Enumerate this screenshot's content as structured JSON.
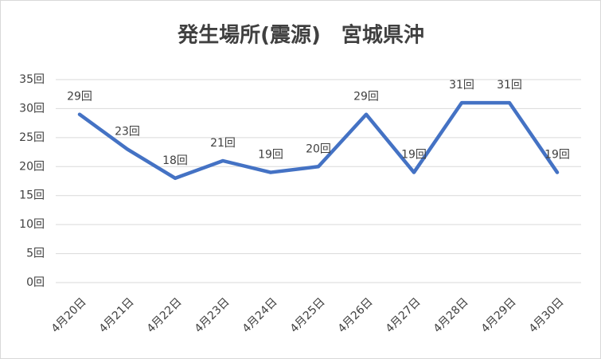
{
  "chart_data": {
    "type": "line",
    "title": "発生場所(震源)　宮城県沖",
    "categories": [
      "4月20日",
      "4月21日",
      "4月22日",
      "4月23日",
      "4月24日",
      "4月25日",
      "4月26日",
      "4月27日",
      "4月28日",
      "4月29日",
      "4月30日"
    ],
    "values": [
      29,
      23,
      18,
      21,
      19,
      20,
      29,
      19,
      31,
      31,
      19
    ],
    "value_labels": [
      "29回",
      "23回",
      "18回",
      "21回",
      "19回",
      "20回",
      "29回",
      "19回",
      "31回",
      "31回",
      "19回"
    ],
    "color": "#4472c4",
    "ylim": [
      0,
      35
    ],
    "yticks": [
      {
        "value": 0,
        "label": "0回"
      },
      {
        "value": 5,
        "label": "5回"
      },
      {
        "value": 10,
        "label": "10回"
      },
      {
        "value": 15,
        "label": "15回"
      },
      {
        "value": 20,
        "label": "20回"
      },
      {
        "value": 25,
        "label": "25回"
      },
      {
        "value": 30,
        "label": "30回"
      },
      {
        "value": 35,
        "label": "35回"
      }
    ],
    "grid": true
  }
}
